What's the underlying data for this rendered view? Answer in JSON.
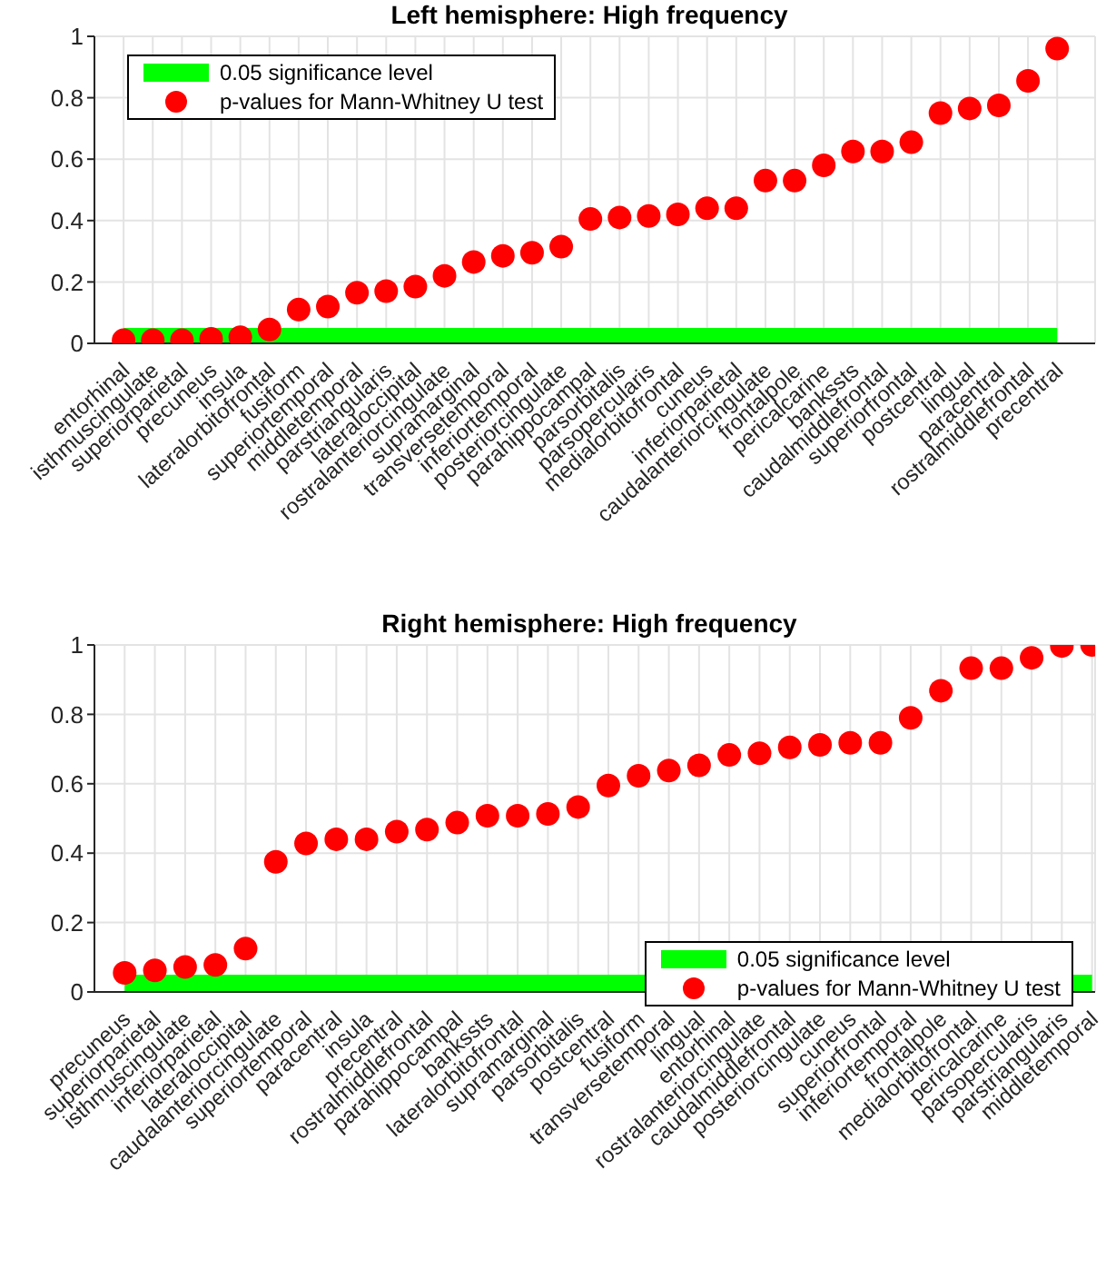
{
  "chart_data": [
    {
      "type": "scatter",
      "title": "Left hemisphere: High frequency",
      "categories": [
        "entorhinal",
        "isthmuscingulate",
        "superiorparietal",
        "precuneus",
        "insula",
        "lateralorbitofrontal",
        "fusiform",
        "superiortemporal",
        "middletemporal",
        "parstriangularis",
        "lateraloccipital",
        "rostralanteriorcingulate",
        "supramarginal",
        "transversetemporal",
        "inferiortemporal",
        "posteriorcingulate",
        "parahippocampal",
        "parsorbitalis",
        "parsopercularis",
        "medialorbitofrontal",
        "cuneus",
        "inferiorparietal",
        "caudalanteriorcingulate",
        "frontalpole",
        "pericalcarine",
        "bankssts",
        "caudalmiddlefrontal",
        "superiorfrontal",
        "postcentral",
        "lingual",
        "paracentral",
        "rostralmiddlefrontal",
        "precentral"
      ],
      "series": [
        {
          "type": "area",
          "name": "0.05 significance level",
          "color": "#00ff00",
          "values": [
            0.05,
            0.05,
            0.05,
            0.05,
            0.05,
            0.05,
            0.05,
            0.05,
            0.05,
            0.05,
            0.05,
            0.05,
            0.05,
            0.05,
            0.05,
            0.05,
            0.05,
            0.05,
            0.05,
            0.05,
            0.05,
            0.05,
            0.05,
            0.05,
            0.05,
            0.05,
            0.05,
            0.05,
            0.05,
            0.05,
            0.05,
            0.05,
            0.05
          ]
        },
        {
          "name": "p-values for Mann-Whitney U test",
          "color": "#ff0000",
          "marker": "circle",
          "values": [
            0.01,
            0.01,
            0.01,
            0.015,
            0.02,
            0.045,
            0.11,
            0.12,
            0.165,
            0.17,
            0.185,
            0.22,
            0.265,
            0.285,
            0.295,
            0.315,
            0.405,
            0.41,
            0.415,
            0.42,
            0.44,
            0.44,
            0.53,
            0.53,
            0.58,
            0.625,
            0.625,
            0.655,
            0.75,
            0.765,
            0.775,
            0.855,
            0.96
          ]
        }
      ],
      "ylim": [
        0,
        1
      ],
      "yticks": [
        0,
        0.2,
        0.4,
        0.6,
        0.8,
        1
      ],
      "grid": true,
      "legend": "top left"
    },
    {
      "type": "scatter",
      "title": "Right hemisphere: High frequency",
      "categories": [
        "precuneus",
        "superiorparietal",
        "isthmuscingulate",
        "inferiorparietal",
        "lateraloccipital",
        "caudalanteriorcingulate",
        "superiortemporal",
        "paracentral",
        "insula",
        "precentral",
        "rostralmiddlefrontal",
        "parahippocampal",
        "bankssts",
        "lateralorbitofrontal",
        "supramarginal",
        "parsorbitalis",
        "postcentral",
        "fusiform",
        "transversetemporal",
        "lingual",
        "entorhinal",
        "rostralanteriorcingulate",
        "caudalmiddlefrontal",
        "posteriorcingulate",
        "cuneus",
        "superiorfrontal",
        "inferiortemporal",
        "frontalpole",
        "medialorbitofrontal",
        "pericalcarine",
        "parsopercularis",
        "parstriangularis",
        "middletemporal"
      ],
      "series": [
        {
          "type": "area",
          "name": "0.05 significance level",
          "color": "#00ff00",
          "values": [
            0.05,
            0.05,
            0.05,
            0.05,
            0.05,
            0.05,
            0.05,
            0.05,
            0.05,
            0.05,
            0.05,
            0.05,
            0.05,
            0.05,
            0.05,
            0.05,
            0.05,
            0.05,
            0.05,
            0.05,
            0.05,
            0.05,
            0.05,
            0.05,
            0.05,
            0.05,
            0.05,
            0.05,
            0.05,
            0.05,
            0.05,
            0.05,
            0.05
          ]
        },
        {
          "name": "p-values for Mann-Whitney U test",
          "color": "#ff0000",
          "marker": "circle",
          "values": [
            0.055,
            0.062,
            0.072,
            0.078,
            0.125,
            0.375,
            0.428,
            0.44,
            0.44,
            0.462,
            0.468,
            0.488,
            0.508,
            0.508,
            0.513,
            0.533,
            0.595,
            0.623,
            0.638,
            0.653,
            0.683,
            0.688,
            0.705,
            0.712,
            0.718,
            0.718,
            0.79,
            0.868,
            0.933,
            0.933,
            0.963,
            0.997,
            1.0
          ]
        }
      ],
      "ylim": [
        0,
        1
      ],
      "yticks": [
        0,
        0.2,
        0.4,
        0.6,
        0.8,
        1
      ],
      "grid": true,
      "legend": "bottom right"
    }
  ]
}
